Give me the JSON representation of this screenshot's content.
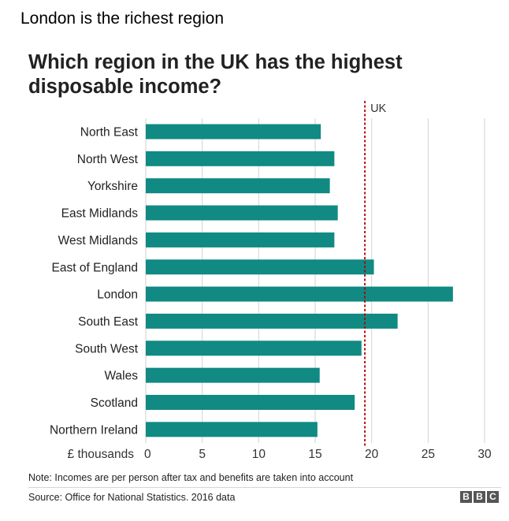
{
  "headline": "London is the richest region",
  "chart_data": {
    "type": "bar",
    "orientation": "horizontal",
    "title": "Which region in the UK has the highest disposable income?",
    "categories": [
      "North East",
      "North West",
      "Yorkshire",
      "East Midlands",
      "West Midlands",
      "East of England",
      "London",
      "South East",
      "South West",
      "Wales",
      "Scotland",
      "Northern Ireland"
    ],
    "values": [
      15.5,
      16.7,
      16.3,
      17.0,
      16.7,
      20.2,
      27.2,
      22.3,
      19.1,
      15.4,
      18.5,
      15.2
    ],
    "xlabel": "£ thousands",
    "ylabel": "",
    "xlim": [
      0,
      30
    ],
    "xticks": [
      0,
      5,
      10,
      15,
      20,
      25,
      30
    ],
    "grid": true,
    "bar_color": "#108a83",
    "reference_line": {
      "label": "UK",
      "value": 19.4,
      "color": "#b00000",
      "style": "dotted"
    }
  },
  "note": "Note: Incomes are per person after tax and benefits are taken into account",
  "source": "Source: Office for National Statistics. 2016 data",
  "logo": [
    "B",
    "B",
    "C"
  ]
}
